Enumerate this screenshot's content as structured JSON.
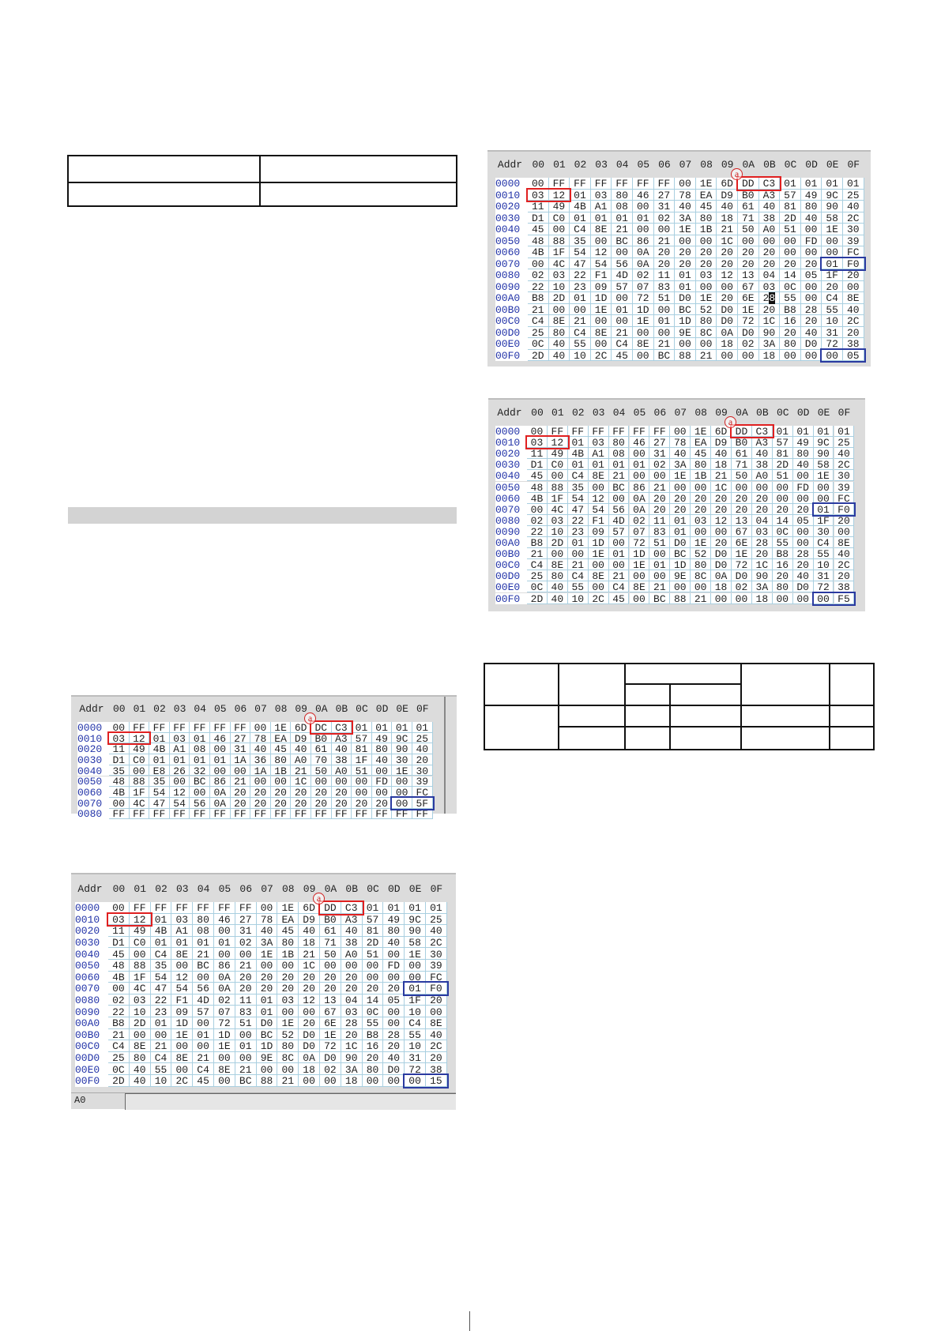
{
  "colors": {
    "highlight_red": "#e02020",
    "highlight_blue": "#2a3aa0",
    "address": "#2233a8",
    "grid_line": "#a9cfe0"
  },
  "hex_header": {
    "addr_label": "Addr",
    "columns": [
      "00",
      "01",
      "02",
      "03",
      "04",
      "05",
      "06",
      "07",
      "08",
      "09",
      "0A",
      "0B",
      "0C",
      "0D",
      "0E",
      "0F"
    ]
  },
  "marker_label": "a",
  "dumps": [
    {
      "id": "A",
      "rows": [
        {
          "addr": "0000",
          "bytes": "00 FF FF FF FF FF FF 00 1E 6D DD C3 01 01 01 01"
        },
        {
          "addr": "0010",
          "bytes": "03 12 01 03 80 46 27 78 EA D9 B0 A3 57 49 9C 25"
        },
        {
          "addr": "0020",
          "bytes": "11 49 4B A1 08 00 31 40 45 40 61 40 81 80 90 40"
        },
        {
          "addr": "0030",
          "bytes": "D1 C0 01 01 01 01 02 3A 80 18 71 38 2D 40 58 2C"
        },
        {
          "addr": "0040",
          "bytes": "45 00 C4 8E 21 00 00 1E 1B 21 50 A0 51 00 1E 30"
        },
        {
          "addr": "0050",
          "bytes": "48 88 35 00 BC 86 21 00 00 1C 00 00 00 FD 00 39"
        },
        {
          "addr": "0060",
          "bytes": "4B 1F 54 12 00 0A 20 20 20 20 20 20 00 00 00 FC"
        },
        {
          "addr": "0070",
          "bytes": "00 4C 47 54 56 0A 20 20 20 20 20 20 20 20 01 F0"
        },
        {
          "addr": "0080",
          "bytes": "02 03 22 F1 4D 02 11 01 03 12 13 04 14 05 1F 20"
        },
        {
          "addr": "0090",
          "bytes": "22 10 23 09 57 07 83 01 00 00 67 03 0C 00 20 00"
        },
        {
          "addr": "00A0",
          "bytes": "B8 2D 01 1D 00 72 51 D0 1E 20 6E 28 55 00 C4 8E"
        },
        {
          "addr": "00B0",
          "bytes": "21 00 00 1E 01 1D 00 BC 52 D0 1E 20 B8 28 55 40"
        },
        {
          "addr": "00C0",
          "bytes": "C4 8E 21 00 00 1E 01 1D 80 D0 72 1C 16 20 10 2C"
        },
        {
          "addr": "00D0",
          "bytes": "25 80 C4 8E 21 00 00 9E 8C 0A D0 90 20 40 31 20"
        },
        {
          "addr": "00E0",
          "bytes": "0C 40 55 00 C4 8E 21 00 00 18 02 3A 80 D0 72 38"
        },
        {
          "addr": "00F0",
          "bytes": "2D 40 10 2C 45 00 BC 88 21 00 00 18 00 00 00 05"
        }
      ],
      "cursor": {
        "row": 10,
        "col": 11
      },
      "highlights": [
        {
          "row": 0,
          "col_start": 10,
          "col_end": 11,
          "color": "red"
        },
        {
          "row": 1,
          "col_start": 0,
          "col_end": 1,
          "color": "red"
        },
        {
          "row": 7,
          "col_start": 14,
          "col_end": 15,
          "color": "blue"
        },
        {
          "row": 15,
          "col_start": 14,
          "col_end": 15,
          "color": "blue"
        }
      ]
    },
    {
      "id": "B",
      "rows": [
        {
          "addr": "0000",
          "bytes": "00 FF FF FF FF FF FF 00 1E 6D DD C3 01 01 01 01"
        },
        {
          "addr": "0010",
          "bytes": "03 12 01 03 80 46 27 78 EA D9 B0 A3 57 49 9C 25"
        },
        {
          "addr": "0020",
          "bytes": "11 49 4B A1 08 00 31 40 45 40 61 40 81 80 90 40"
        },
        {
          "addr": "0030",
          "bytes": "D1 C0 01 01 01 01 02 3A 80 18 71 38 2D 40 58 2C"
        },
        {
          "addr": "0040",
          "bytes": "45 00 C4 8E 21 00 00 1E 1B 21 50 A0 51 00 1E 30"
        },
        {
          "addr": "0050",
          "bytes": "48 88 35 00 BC 86 21 00 00 1C 00 00 00 FD 00 39"
        },
        {
          "addr": "0060",
          "bytes": "4B 1F 54 12 00 0A 20 20 20 20 20 20 00 00 00 FC"
        },
        {
          "addr": "0070",
          "bytes": "00 4C 47 54 56 0A 20 20 20 20 20 20 20 20 01 F0"
        },
        {
          "addr": "0080",
          "bytes": "02 03 22 F1 4D 02 11 01 03 12 13 04 14 05 1F 20"
        },
        {
          "addr": "0090",
          "bytes": "22 10 23 09 57 07 83 01 00 00 67 03 0C 00 30 00"
        },
        {
          "addr": "00A0",
          "bytes": "B8 2D 01 1D 00 72 51 D0 1E 20 6E 28 55 00 C4 8E"
        },
        {
          "addr": "00B0",
          "bytes": "21 00 00 1E 01 1D 00 BC 52 D0 1E 20 B8 28 55 40"
        },
        {
          "addr": "00C0",
          "bytes": "C4 8E 21 00 00 1E 01 1D 80 D0 72 1C 16 20 10 2C"
        },
        {
          "addr": "00D0",
          "bytes": "25 80 C4 8E 21 00 00 9E 8C 0A D0 90 20 40 31 20"
        },
        {
          "addr": "00E0",
          "bytes": "0C 40 55 00 C4 8E 21 00 00 18 02 3A 80 D0 72 38"
        },
        {
          "addr": "00F0",
          "bytes": "2D 40 10 2C 45 00 BC 88 21 00 00 18 00 00 00 F5"
        }
      ],
      "highlights": [
        {
          "row": 0,
          "col_start": 10,
          "col_end": 11,
          "color": "red"
        },
        {
          "row": 1,
          "col_start": 0,
          "col_end": 1,
          "color": "red"
        },
        {
          "row": 7,
          "col_start": 14,
          "col_end": 15,
          "color": "blue"
        },
        {
          "row": 15,
          "col_start": 14,
          "col_end": 15,
          "color": "blue"
        }
      ]
    },
    {
      "id": "C",
      "rows": [
        {
          "addr": "0000",
          "bytes": "00 FF FF FF FF FF FF 00 1E 6D DC C3 01 01 01 01"
        },
        {
          "addr": "0010",
          "bytes": "03 12 01 03 01 46 27 78 EA D9 B0 A3 57 49 9C 25"
        },
        {
          "addr": "0020",
          "bytes": "11 49 4B A1 08 00 31 40 45 40 61 40 81 80 90 40"
        },
        {
          "addr": "0030",
          "bytes": "D1 C0 01 01 01 01 1A 36 80 A0 70 38 1F 40 30 20"
        },
        {
          "addr": "0040",
          "bytes": "35 00 E8 26 32 00 00 1A 1B 21 50 A0 51 00 1E 30"
        },
        {
          "addr": "0050",
          "bytes": "48 88 35 00 BC 86 21 00 00 1C 00 00 00 FD 00 39"
        },
        {
          "addr": "0060",
          "bytes": "4B 1F 54 12 00 0A 20 20 20 20 20 20 00 00 00 FC"
        },
        {
          "addr": "0070",
          "bytes": "00 4C 47 54 56 0A 20 20 20 20 20 20 20 20 00 5F"
        },
        {
          "addr": "0080",
          "bytes": "FF FF FF FF FF FF FF FF FF FF FF FF FF FF FF FF"
        }
      ],
      "highlights": [
        {
          "row": 0,
          "col_start": 10,
          "col_end": 11,
          "color": "red"
        },
        {
          "row": 1,
          "col_start": 0,
          "col_end": 1,
          "color": "red"
        },
        {
          "row": 7,
          "col_start": 14,
          "col_end": 15,
          "color": "blue"
        }
      ]
    },
    {
      "id": "D",
      "rows": [
        {
          "addr": "0000",
          "bytes": "00 FF FF FF FF FF FF 00 1E 6D DD C3 01 01 01 01"
        },
        {
          "addr": "0010",
          "bytes": "03 12 01 03 80 46 27 78 EA D9 B0 A3 57 49 9C 25"
        },
        {
          "addr": "0020",
          "bytes": "11 49 4B A1 08 00 31 40 45 40 61 40 81 80 90 40"
        },
        {
          "addr": "0030",
          "bytes": "D1 C0 01 01 01 01 02 3A 80 18 71 38 2D 40 58 2C"
        },
        {
          "addr": "0040",
          "bytes": "45 00 C4 8E 21 00 00 1E 1B 21 50 A0 51 00 1E 30"
        },
        {
          "addr": "0050",
          "bytes": "48 88 35 00 BC 86 21 00 00 1C 00 00 00 FD 00 39"
        },
        {
          "addr": "0060",
          "bytes": "4B 1F 54 12 00 0A 20 20 20 20 20 20 00 00 00 FC"
        },
        {
          "addr": "0070",
          "bytes": "00 4C 47 54 56 0A 20 20 20 20 20 20 20 20 01 F0"
        },
        {
          "addr": "0080",
          "bytes": "02 03 22 F1 4D 02 11 01 03 12 13 04 14 05 1F 20"
        },
        {
          "addr": "0090",
          "bytes": "22 10 23 09 57 07 83 01 00 00 67 03 0C 00 10 00"
        },
        {
          "addr": "00A0",
          "bytes": "B8 2D 01 1D 00 72 51 D0 1E 20 6E 28 55 00 C4 8E"
        },
        {
          "addr": "00B0",
          "bytes": "21 00 00 1E 01 1D 00 BC 52 D0 1E 20 B8 28 55 40"
        },
        {
          "addr": "00C0",
          "bytes": "C4 8E 21 00 00 1E 01 1D 80 D0 72 1C 16 20 10 2C"
        },
        {
          "addr": "00D0",
          "bytes": "25 80 C4 8E 21 00 00 9E 8C 0A D0 90 20 40 31 20"
        },
        {
          "addr": "00E0",
          "bytes": "0C 40 55 00 C4 8E 21 00 00 18 02 3A 80 D0 72 38"
        },
        {
          "addr": "00F0",
          "bytes": "2D 40 10 2C 45 00 BC 88 21 00 00 18 00 00 00 15"
        }
      ],
      "highlights": [
        {
          "row": 0,
          "col_start": 10,
          "col_end": 11,
          "color": "red"
        },
        {
          "row": 1,
          "col_start": 0,
          "col_end": 1,
          "color": "red"
        },
        {
          "row": 7,
          "col_start": 14,
          "col_end": 15,
          "color": "blue"
        },
        {
          "row": 15,
          "col_start": 14,
          "col_end": 15,
          "color": "blue"
        }
      ],
      "status_label": "A0"
    }
  ]
}
